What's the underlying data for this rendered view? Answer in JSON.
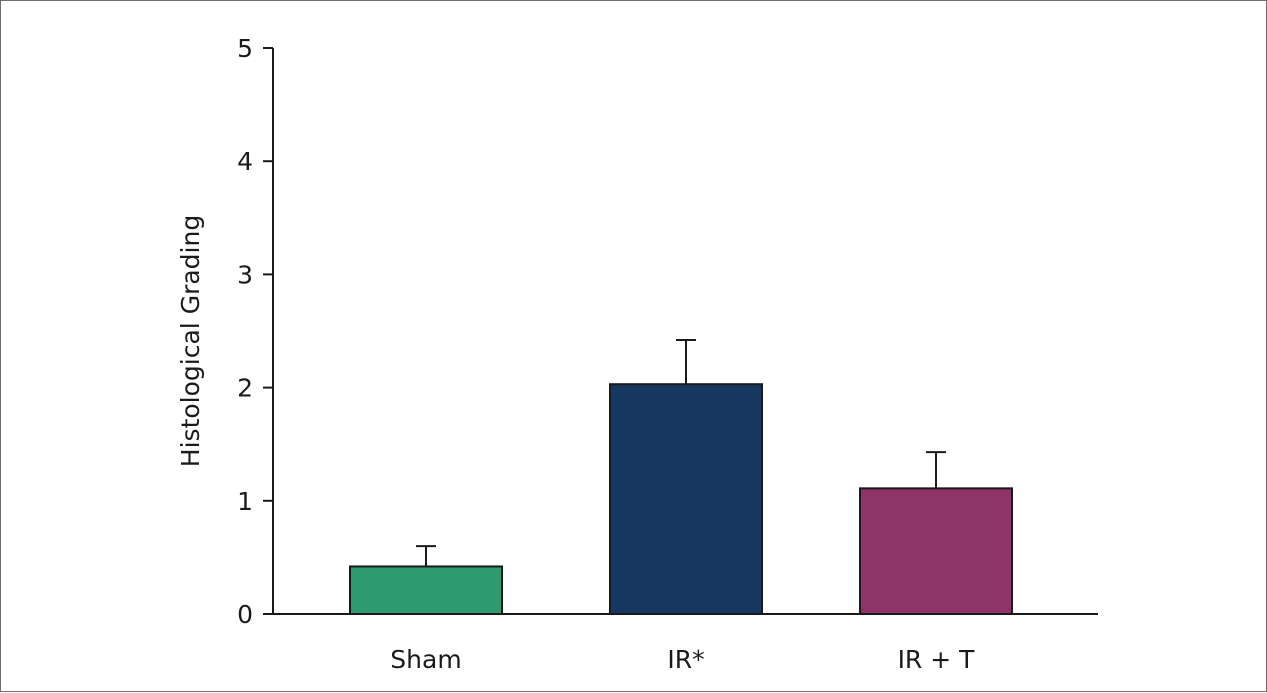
{
  "chart_data": {
    "type": "bar",
    "title": "",
    "xlabel": "",
    "ylabel": "Histological Grading",
    "categories": [
      "Sham",
      "IR*",
      "IR + T"
    ],
    "values": [
      0.42,
      2.03,
      1.11
    ],
    "errors": [
      0.18,
      0.39,
      0.32
    ],
    "colors": [
      "#2e9a6e",
      "#163760",
      "#8e3468"
    ],
    "ylim": [
      0,
      5
    ],
    "yticks": [
      0,
      1,
      2,
      3,
      4,
      5
    ],
    "ytick_labels": [
      "0",
      "1",
      "2",
      "3",
      "4",
      "5"
    ],
    "grid": false,
    "legend": "none"
  }
}
